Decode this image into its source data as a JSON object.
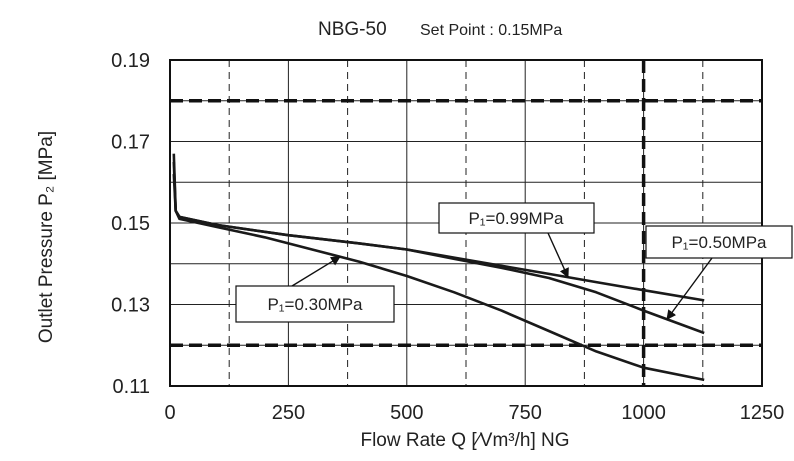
{
  "chart_data": {
    "type": "line",
    "title": "NBG-50",
    "subtitle": "Set Point : 0.15MPa",
    "xlabel": "Flow Rate  Q  [∕Vm³/h] NG",
    "ylabel": "Outlet  Pressure P₂ [MPa]",
    "xlim": [
      0,
      1250
    ],
    "ylim": [
      0.11,
      0.19
    ],
    "x_ticks": [
      "0",
      "250",
      "500",
      "750",
      "1000",
      "1250"
    ],
    "y_ticks": [
      "0.19",
      "0.17",
      "0.15",
      "0.13",
      "0.11"
    ],
    "grid": true,
    "limit_lines": {
      "horizontal": [
        0.18,
        0.12
      ],
      "vertical": [
        1000
      ]
    },
    "series": [
      {
        "name": "P₁=0.99MPa",
        "points": [
          [
            8,
            0.167
          ],
          [
            12,
            0.153
          ],
          [
            20,
            0.1515
          ],
          [
            100,
            0.1495
          ],
          [
            250,
            0.147
          ],
          [
            400,
            0.145
          ],
          [
            500,
            0.1435
          ],
          [
            600,
            0.1415
          ],
          [
            700,
            0.1395
          ],
          [
            800,
            0.1375
          ],
          [
            900,
            0.1355
          ],
          [
            1000,
            0.1335
          ],
          [
            1128,
            0.131
          ]
        ]
      },
      {
        "name": "P₁=0.50MPa",
        "points": [
          [
            8,
            0.165
          ],
          [
            12,
            0.153
          ],
          [
            20,
            0.1515
          ],
          [
            100,
            0.1495
          ],
          [
            250,
            0.147
          ],
          [
            400,
            0.145
          ],
          [
            500,
            0.1435
          ],
          [
            600,
            0.1412
          ],
          [
            700,
            0.139
          ],
          [
            800,
            0.1365
          ],
          [
            900,
            0.133
          ],
          [
            1000,
            0.1285
          ],
          [
            1128,
            0.123
          ]
        ]
      },
      {
        "name": "P₁=0.30MPa",
        "points": [
          [
            8,
            0.162
          ],
          [
            12,
            0.153
          ],
          [
            20,
            0.151
          ],
          [
            100,
            0.149
          ],
          [
            200,
            0.1465
          ],
          [
            300,
            0.1435
          ],
          [
            400,
            0.1405
          ],
          [
            500,
            0.137
          ],
          [
            600,
            0.133
          ],
          [
            700,
            0.1285
          ],
          [
            800,
            0.1235
          ],
          [
            900,
            0.1185
          ],
          [
            1000,
            0.1145
          ],
          [
            1128,
            0.1115
          ]
        ]
      }
    ],
    "annotations": [
      {
        "text": "P₁=0.99MPa",
        "series": 0
      },
      {
        "text": "P₁=0.50MPa",
        "series": 1
      },
      {
        "text": "P₁=0.30MPa",
        "series": 2
      }
    ]
  }
}
